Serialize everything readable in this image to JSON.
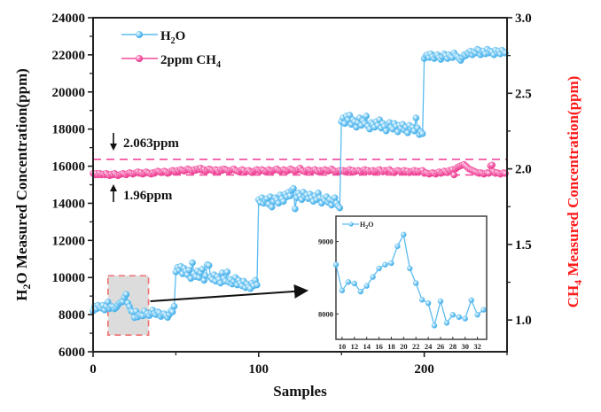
{
  "chart_data": [
    {
      "type": "line",
      "name": "main",
      "title": "",
      "xlabel": "Samples",
      "ylabel_left": "H2O Measured Concentration(ppm)",
      "ylabel_right": "CH4 Measured Concentration(ppm)",
      "xlim": [
        0,
        250
      ],
      "ylim_left": [
        6000,
        24000
      ],
      "ylim_right": [
        0.79,
        3.0
      ],
      "x_ticks": [
        "0",
        "100",
        "200"
      ],
      "x_tick_values": [
        0,
        100,
        200
      ],
      "x_minor_tick_values": [
        50,
        150,
        250
      ],
      "y_left_ticks": [
        "6000",
        "8000",
        "10000",
        "12000",
        "14000",
        "16000",
        "18000",
        "20000",
        "22000",
        "24000"
      ],
      "y_left_tick_values": [
        6000,
        8000,
        10000,
        12000,
        14000,
        16000,
        18000,
        20000,
        22000,
        24000
      ],
      "y_right_ticks": [
        "1.0",
        "1.5",
        "2.0",
        "2.5",
        "3.0"
      ],
      "y_right_tick_values": [
        1.0,
        1.5,
        2.0,
        2.5,
        3.0
      ],
      "grid": false,
      "legend_position": "top-left",
      "series": [
        {
          "name": "H2O",
          "legend_label": "H",
          "legend_sub": "2",
          "legend_tail": "O",
          "axis": "left",
          "color": "#5bbcf0",
          "segments": [
            {
              "x_start": 0,
              "values": [
                8200,
                8450,
                8300,
                8500,
                8400,
                8350,
                8500,
                8250,
                8450,
                8681,
                8324,
                8441,
                8420,
                8309,
                8388,
                8511,
                8628,
                8681,
                8702,
                8936,
                9096,
                8628,
                8426,
                8197,
                8149,
                7840,
                8176,
                7878,
                7989,
                7957,
                7936,
                8191,
                7989,
                8059,
                7950,
                8100,
                8250,
                8050,
                8000,
                8150,
                8100,
                7900,
                8000,
                8050,
                7950,
                7850,
                8000,
                8200,
                8150,
                8450
              ]
            },
            {
              "x_start": 50,
              "values": [
                10300,
                10550,
                10400,
                10600,
                10200,
                10500,
                10350,
                10150,
                10400,
                9950,
                10800,
                10200,
                10050,
                10350,
                10000,
                10250,
                10450,
                9850,
                10100,
                10700,
                10650,
                10000,
                9900,
                10150,
                9800,
                10050,
                9900,
                9700,
                10250,
                9950,
                9800,
                10300,
                9750,
                9900,
                9650,
                9800,
                10000,
                9600,
                9850,
                9700,
                9550,
                9800,
                9450,
                9650,
                9500,
                9400,
                9700,
                9550,
                9850,
                9600
              ]
            },
            {
              "x_start": 100,
              "values": [
                14200,
                14050,
                14300,
                14000,
                14150,
                14250,
                13950,
                14350,
                13800,
                14100,
                14300,
                14200,
                14000,
                14450,
                14250,
                14100,
                14500,
                14350,
                14600,
                14400,
                14700,
                14800,
                13700,
                14300,
                14550,
                14400,
                14200,
                14600,
                14350,
                14450,
                14250,
                14500,
                14300,
                14100,
                14400,
                14200,
                14550,
                14300,
                14000,
                14250,
                14150,
                14350,
                14050,
                14200,
                13900,
                14150,
                14300,
                14000,
                13850,
                13750
              ]
            },
            {
              "x_start": 150,
              "values": [
                18400,
                18600,
                18300,
                18700,
                18500,
                18750,
                18250,
                18500,
                18400,
                18100,
                18350,
                18600,
                18200,
                18450,
                18300,
                18700,
                18150,
                18000,
                18350,
                18250,
                18100,
                18400,
                18200,
                18500,
                18050,
                18300,
                18150,
                17900,
                18250,
                18350,
                18100,
                18000,
                18300,
                18150,
                17850,
                18200,
                18050,
                18250,
                17950,
                18100,
                17800,
                18200,
                18000,
                18100,
                17900,
                18600,
                18050,
                17700,
                17850,
                17750
              ]
            },
            {
              "x_start": 200,
              "values": [
                21800,
                21950,
                22000,
                21850,
                22050,
                21900,
                21800,
                21950,
                22000,
                21850,
                21750,
                21900,
                22050,
                21950,
                21800,
                22000,
                21900,
                21850,
                22100,
                21950,
                21900,
                21800,
                21700,
                21850,
                22000,
                21950,
                22100,
                22050,
                22200,
                22000,
                22150,
                22100,
                22300,
                22250,
                22000,
                22150,
                22200,
                22050,
                22300,
                22100,
                22200,
                22150,
                22000,
                22250,
                22100,
                22200,
                22050,
                22250,
                22150,
                22100
              ]
            }
          ]
        },
        {
          "name": "2ppm CH4",
          "legend_label": "2ppm CH",
          "legend_sub": "4",
          "legend_tail": "",
          "axis": "right",
          "color": "#f0489a",
          "segments": [
            {
              "x_start": 0,
              "values": [
                1.97,
                1.96,
                1.97,
                1.96,
                1.97,
                1.96,
                1.965,
                1.96,
                1.97,
                1.96,
                1.955,
                1.965,
                1.96,
                1.97,
                1.96,
                1.955,
                1.96,
                1.965,
                1.97,
                1.965,
                1.96,
                1.97,
                1.975,
                1.97,
                1.965,
                1.97,
                1.975,
                1.98,
                1.97,
                1.975,
                1.965,
                1.97,
                1.98,
                1.975,
                1.97,
                1.965,
                1.975,
                1.97,
                1.98,
                1.985,
                1.98,
                1.975,
                1.98,
                1.985,
                1.98,
                1.97,
                1.975,
                1.985,
                1.99,
                1.985
              ]
            },
            {
              "x_start": 50,
              "values": [
                1.98,
                1.99,
                1.985,
                1.995,
                1.99,
                1.985,
                1.99,
                2.0,
                1.995,
                1.99,
                1.985,
                1.995,
                1.99,
                2.0,
                1.995,
                2.005,
                1.99,
                1.995,
                1.985,
                1.99,
                2.0,
                1.995,
                1.99,
                1.985,
                1.995,
                1.99,
                1.98,
                1.995,
                1.99,
                2.0,
                1.995,
                1.99,
                1.985,
                1.99,
                1.995,
                2.0,
                1.99,
                1.985,
                1.98,
                1.99,
                1.995,
                1.99,
                1.98,
                1.985,
                1.99,
                1.98,
                1.975,
                1.985,
                1.99,
                1.995
              ]
            },
            {
              "x_start": 100,
              "values": [
                1.99,
                1.985,
                1.995,
                1.99,
                1.98,
                1.985,
                1.995,
                1.99,
                1.985,
                1.99,
                1.995,
                2.0,
                1.99,
                1.985,
                1.99,
                1.995,
                1.99,
                1.985,
                1.99,
                2.0,
                1.995,
                1.99,
                1.985,
                1.99,
                1.995,
                2.005,
                1.99,
                1.985,
                1.98,
                1.99,
                1.995,
                1.99,
                1.985,
                1.99,
                1.995,
                1.985,
                1.98,
                1.99,
                1.985,
                1.99,
                1.995,
                1.99,
                1.985,
                1.99,
                2.0,
                1.99,
                1.985,
                1.98,
                1.985,
                1.99
              ]
            },
            {
              "x_start": 150,
              "values": [
                1.985,
                1.99,
                1.98,
                1.985,
                1.99,
                1.995,
                1.985,
                1.99,
                1.98,
                1.985,
                1.99,
                1.985,
                1.98,
                1.99,
                1.995,
                1.985,
                1.99,
                1.98,
                1.985,
                1.99,
                1.98,
                1.985,
                1.99,
                1.995,
                1.985,
                1.98,
                1.99,
                1.985,
                1.99,
                1.995,
                1.985,
                1.98,
                1.975,
                1.985,
                1.99,
                1.985,
                1.98,
                1.985,
                1.99,
                1.98,
                1.985,
                1.975,
                1.98,
                1.985,
                1.99,
                1.98,
                1.985,
                1.98,
                1.985,
                1.99
              ]
            },
            {
              "x_start": 200,
              "values": [
                1.97,
                1.975,
                1.97,
                1.965,
                1.97,
                1.975,
                1.97,
                1.965,
                1.975,
                1.98,
                1.97,
                1.975,
                1.985,
                1.98,
                1.975,
                1.99,
                1.985,
                1.995,
                1.96,
                2.0,
                2.01,
                2.015,
                2.02,
                2.025,
                2.03,
                2.02,
                2.01,
                2.0,
                1.995,
                1.99,
                1.985,
                1.98,
                1.975,
                1.97,
                1.975,
                1.97,
                1.965,
                1.97,
                1.975,
                1.97,
                2.02,
                2.025,
                1.98,
                1.97,
                1.975,
                1.97,
                1.965,
                1.97,
                1.975,
                1.97
              ]
            }
          ]
        }
      ],
      "reference_lines": [
        {
          "axis": "right",
          "value": 2.063,
          "label": "2.063ppm",
          "style": "dashed",
          "color": "#f0489a"
        },
        {
          "axis": "right",
          "value": 1.96,
          "label": "1.96ppm",
          "style": "dashed",
          "color": "#f0489a"
        }
      ],
      "highlight_region": {
        "x_range": [
          9,
          33.5
        ],
        "y_range": [
          6900,
          10100
        ],
        "fill": "#dcdcdc",
        "border": "#f07070",
        "style": "dashed"
      },
      "arrow": {
        "from": "highlight_region",
        "to": "inset"
      }
    },
    {
      "type": "line",
      "name": "inset",
      "title": "",
      "xlabel": "",
      "ylabel": "",
      "xlim": [
        9,
        33.5
      ],
      "ylim": [
        7650,
        9350
      ],
      "x_ticks": [
        "10",
        "12",
        "14",
        "16",
        "18",
        "20",
        "22",
        "24",
        "26",
        "28",
        "30",
        "32"
      ],
      "x_tick_values": [
        10,
        12,
        14,
        16,
        18,
        20,
        22,
        24,
        26,
        28,
        30,
        32
      ],
      "y_ticks": [
        "8000",
        "9000"
      ],
      "y_tick_values": [
        8000,
        9000
      ],
      "grid": false,
      "legend_position": "top-left",
      "series": [
        {
          "name": "H2O",
          "legend_label": "H",
          "legend_sub": "2",
          "legend_tail": "O",
          "color": "#5bbcf0",
          "x": [
            9,
            10,
            11,
            12,
            13,
            14,
            15,
            16,
            17,
            18,
            19,
            20,
            21,
            22,
            23,
            24,
            25,
            26,
            27,
            28,
            29,
            30,
            31,
            32,
            33
          ],
          "values": [
            8681,
            8324,
            8441,
            8420,
            8309,
            8388,
            8511,
            8628,
            8681,
            8702,
            8936,
            9096,
            8628,
            8426,
            8197,
            8149,
            7840,
            8176,
            7878,
            7989,
            7957,
            7936,
            8191,
            7989,
            8059
          ]
        }
      ]
    }
  ],
  "labels": {
    "xlabel": "Samples",
    "ylabel_left_pre": "H",
    "ylabel_left_sub": "2",
    "ylabel_left_post": "O Measured Concentration(ppm)",
    "ylabel_right_pre": "CH",
    "ylabel_right_sub": "4",
    "ylabel_right_post": " Measured Concentration(ppm)",
    "annot_upper": "2.063ppm",
    "annot_lower": "1.96ppm",
    "legend_h2o_pre": "H",
    "legend_h2o_sub": "2",
    "legend_h2o_post": "O",
    "legend_ch4_pre": "2ppm CH",
    "legend_ch4_sub": "4",
    "inset_legend_pre": "H",
    "inset_legend_sub": "2",
    "inset_legend_post": "O"
  },
  "colors": {
    "h2o": "#5bbcf0",
    "ch4": "#f0489a",
    "right_axis_title": "#ff1a1a",
    "highlight_fill": "#dcdcdc",
    "highlight_border": "#f07070"
  }
}
